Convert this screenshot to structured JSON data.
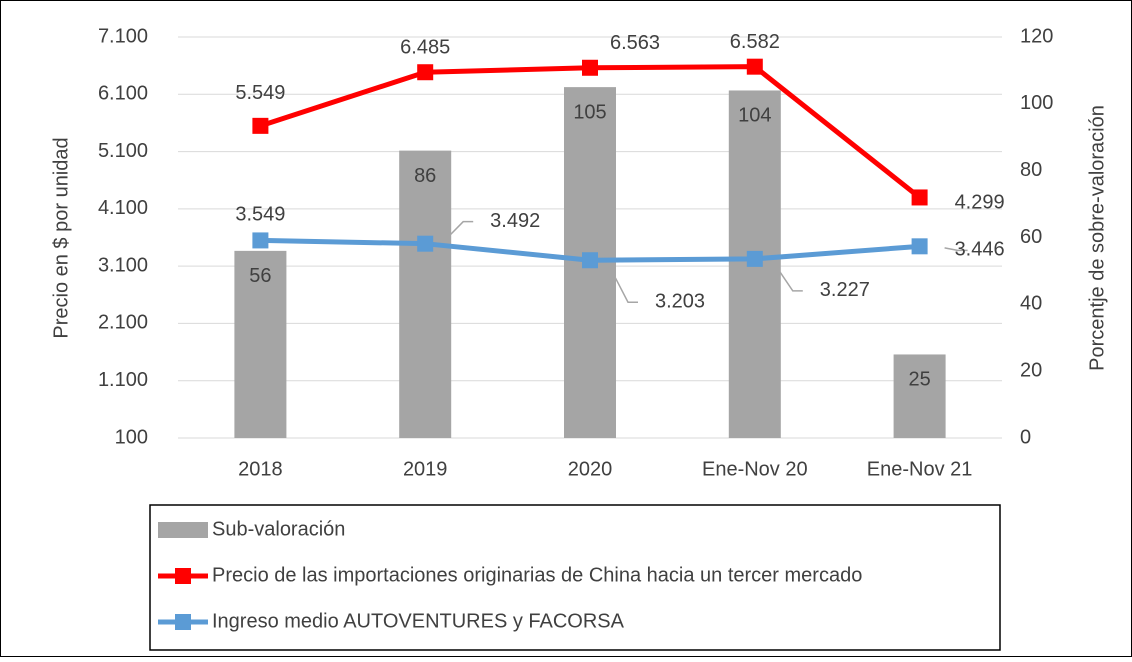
{
  "chart_data": {
    "type": "combo",
    "categories": [
      "2018",
      "2019",
      "2020",
      "Ene-Nov 20",
      "Ene-Nov 21"
    ],
    "ylabel": "Precio en $ por unidad",
    "y2label": "Porcentje de sobre-valoración",
    "ylim": [
      100,
      7100
    ],
    "yticks": [
      {
        "value": 100,
        "label": "100"
      },
      {
        "value": 1100,
        "label": "1.100"
      },
      {
        "value": 2100,
        "label": "2.100"
      },
      {
        "value": 3100,
        "label": "3.100"
      },
      {
        "value": 4100,
        "label": "4.100"
      },
      {
        "value": 5100,
        "label": "5.100"
      },
      {
        "value": 6100,
        "label": "6.100"
      },
      {
        "value": 7100,
        "label": "7.100"
      }
    ],
    "y2lim": [
      0,
      120
    ],
    "y2ticks": [
      0,
      20,
      40,
      60,
      80,
      100,
      120
    ],
    "grid": true,
    "legend": "bottom",
    "series": [
      {
        "name": "Sub-valoración",
        "type": "bar",
        "axis": "y2",
        "color": "#a5a5a5",
        "values": [
          56,
          86,
          105,
          104,
          25
        ]
      },
      {
        "name": "Precio de las importaciones originarias de China hacia un tercer mercado",
        "type": "line",
        "color": "#ff0000",
        "values": [
          5549,
          6485,
          6563,
          6582,
          4299
        ],
        "value_labels": [
          "5.549",
          "6.485",
          "6.563",
          "6.582",
          "4.299"
        ]
      },
      {
        "name": "Ingreso medio AUTOVENTURES y FACORSA",
        "type": "line",
        "color": "#5b9bd5",
        "values": [
          3549,
          3492,
          3203,
          3227,
          3446
        ],
        "value_labels": [
          "3.549",
          "3.492",
          "3.203",
          "3.227",
          "3.446"
        ]
      }
    ]
  }
}
